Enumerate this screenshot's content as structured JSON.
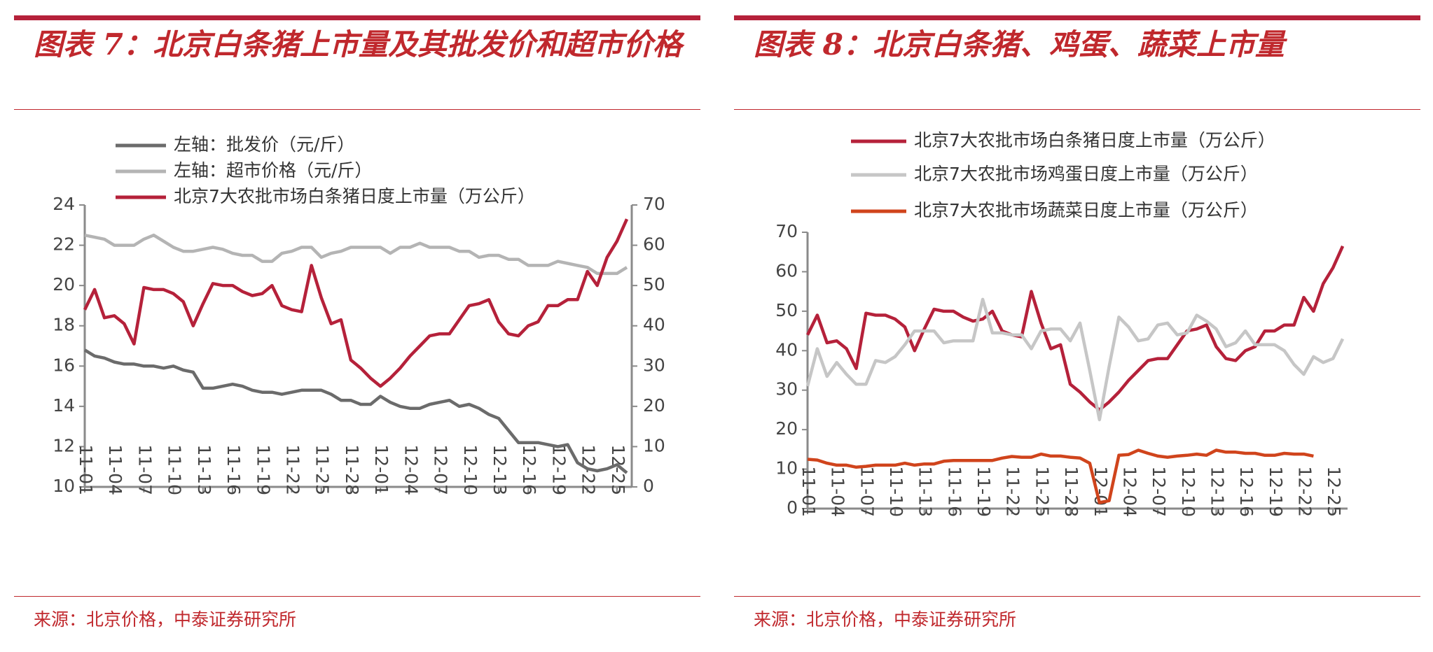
{
  "chart_data": [
    {
      "type": "line",
      "title": "图表 7：北京白条猪上市量及其批发价和超市价格",
      "source": "来源：北京价格，中泰证券研究所",
      "categories": [
        "11-01",
        null,
        null,
        "11-04",
        null,
        null,
        "11-07",
        null,
        null,
        "11-10",
        null,
        null,
        "11-13",
        null,
        null,
        "11-16",
        null,
        null,
        "11-19",
        null,
        null,
        "11-22",
        null,
        null,
        "11-25",
        null,
        null,
        "11-28",
        null,
        null,
        "12-01",
        null,
        null,
        "12-04",
        null,
        null,
        "12-07",
        null,
        null,
        "12-10",
        null,
        null,
        "12-13",
        null,
        null,
        "12-16",
        null,
        null,
        "12-19",
        null,
        null,
        "12-22",
        null,
        null,
        "12-25",
        null
      ],
      "ylim": [
        10,
        24
      ],
      "yticks": [
        10,
        12,
        14,
        16,
        18,
        20,
        22,
        24
      ],
      "y2lim": [
        0,
        70
      ],
      "y2ticks": [
        0,
        10,
        20,
        30,
        40,
        50,
        60,
        70
      ],
      "grid": false,
      "legend": "top",
      "series": [
        {
          "name": "左轴：批发价（元/斤）",
          "color": "#6b6b6b",
          "values": [
            16.8,
            16.5,
            16.4,
            16.2,
            16.1,
            16.1,
            16.0,
            16.0,
            15.9,
            16.0,
            15.8,
            15.7,
            14.9,
            14.9,
            15.0,
            15.1,
            15.0,
            14.8,
            14.7,
            14.7,
            14.6,
            14.7,
            14.8,
            14.8,
            14.8,
            14.6,
            14.3,
            14.3,
            14.1,
            14.1,
            14.5,
            14.2,
            14.0,
            13.9,
            13.9,
            14.1,
            14.2,
            14.3,
            14.0,
            14.1,
            13.9,
            13.6,
            13.4,
            12.8,
            12.2,
            12.2,
            12.2,
            12.1,
            12.0,
            12.1,
            11.2,
            10.9,
            10.8,
            10.9,
            11.1,
            10.7
          ]
        },
        {
          "name": "左轴：超市价格（元/斤）",
          "color": "#b4b4b4",
          "values": [
            22.5,
            22.4,
            22.3,
            22.0,
            22.0,
            22.0,
            22.3,
            22.5,
            22.2,
            21.9,
            21.7,
            21.7,
            21.8,
            21.9,
            21.8,
            21.6,
            21.5,
            21.5,
            21.2,
            21.2,
            21.6,
            21.7,
            21.9,
            21.9,
            21.4,
            21.6,
            21.7,
            21.9,
            21.9,
            21.9,
            21.9,
            21.6,
            21.9,
            21.9,
            22.1,
            21.9,
            21.9,
            21.9,
            21.7,
            21.7,
            21.4,
            21.5,
            21.5,
            21.3,
            21.3,
            21.0,
            21.0,
            21.0,
            21.2,
            21.1,
            21.0,
            20.9,
            20.6,
            20.6,
            20.6,
            20.9
          ]
        },
        {
          "name": "北京7大农批市场白条猪日度上市量（万公斤）",
          "color": "#b5213a",
          "axis": "y2",
          "values": [
            44,
            49,
            42,
            42.5,
            40.5,
            35.5,
            49.5,
            49,
            49,
            48,
            46,
            40,
            45.5,
            50.5,
            50,
            50,
            48.5,
            47.5,
            48,
            50,
            45,
            44,
            43.5,
            55,
            47,
            40.5,
            41.5,
            31.5,
            29.5,
            27,
            25,
            27,
            29.5,
            32.5,
            35,
            37.5,
            38,
            38,
            41.5,
            45,
            45.5,
            46.5,
            41,
            38,
            37.5,
            40,
            41,
            45,
            45,
            46.5,
            46.5,
            53.5,
            50,
            57,
            61,
            66.5
          ]
        }
      ]
    },
    {
      "type": "line",
      "title": "图表 8：北京白条猪、鸡蛋、蔬菜上市量",
      "source": "来源：北京价格，中泰证券研究所",
      "categories": [
        "11-01",
        null,
        null,
        "11-04",
        null,
        null,
        "11-07",
        null,
        null,
        "11-10",
        null,
        null,
        "11-13",
        null,
        null,
        "11-16",
        null,
        null,
        "11-19",
        null,
        null,
        "11-22",
        null,
        null,
        "11-25",
        null,
        null,
        "11-28",
        null,
        null,
        "12-01",
        null,
        null,
        "12-04",
        null,
        null,
        "12-07",
        null,
        null,
        "12-10",
        null,
        null,
        "12-13",
        null,
        null,
        "12-16",
        null,
        null,
        "12-19",
        null,
        null,
        "12-22",
        null,
        null,
        "12-25",
        null
      ],
      "ylim": [
        0,
        70
      ],
      "yticks": [
        0,
        10,
        20,
        30,
        40,
        50,
        60,
        70
      ],
      "grid": false,
      "legend": "top",
      "series": [
        {
          "name": "北京7大农批市场白条猪日度上市量（万公斤）",
          "color": "#b5213a",
          "values": [
            44,
            49,
            42,
            42.5,
            40.5,
            35.5,
            49.5,
            49,
            49,
            48,
            46,
            40,
            45.5,
            50.5,
            50,
            50,
            48.5,
            47.5,
            48,
            50,
            45,
            44,
            43.5,
            55,
            47,
            40.5,
            41.5,
            31.5,
            29.5,
            27,
            25,
            27,
            29.5,
            32.5,
            35,
            37.5,
            38,
            38,
            41.5,
            45,
            45.5,
            46.5,
            41,
            38,
            37.5,
            40,
            41,
            45,
            45,
            46.5,
            46.5,
            53.5,
            50,
            57,
            61,
            66.5
          ]
        },
        {
          "name": "北京7大农批市场鸡蛋日度上市量（万公斤）",
          "color": "#c6c6c6",
          "values": [
            31,
            40.5,
            33.5,
            37,
            34,
            31.5,
            31.5,
            37.5,
            37,
            38.5,
            41.5,
            45,
            45,
            45,
            42,
            42.5,
            42.5,
            42.5,
            53,
            44.5,
            44.5,
            44,
            44,
            40.5,
            45,
            45.5,
            45.5,
            42.5,
            47,
            35,
            22.5,
            36,
            48.5,
            46,
            42.5,
            43,
            46.5,
            47,
            44,
            44.5,
            49,
            47.5,
            45.5,
            41,
            42,
            45,
            41.5,
            41.5,
            41.5,
            40,
            36.5,
            34,
            38.5,
            37,
            38,
            43
          ]
        },
        {
          "name": "北京7大农批市场蔬菜日度上市量（万公斤）",
          "color": "#d0441c",
          "values": [
            12.5,
            12.3,
            11.5,
            11,
            11,
            10.5,
            10.7,
            11,
            11,
            11,
            11.5,
            11,
            11.3,
            11.3,
            12,
            12.2,
            12.2,
            12.2,
            12.2,
            12.2,
            12.8,
            13.2,
            13,
            13,
            13.8,
            13.3,
            13.3,
            13,
            12.8,
            11.5,
            1.5,
            2,
            13.5,
            13.7,
            14.8,
            14,
            13.3,
            13,
            13.3,
            13.5,
            13.8,
            13.5,
            14.8,
            14.3,
            14.3,
            14,
            14,
            13.5,
            13.5,
            14,
            13.8,
            13.8,
            13.3,
            null,
            null,
            null
          ]
        }
      ]
    }
  ]
}
